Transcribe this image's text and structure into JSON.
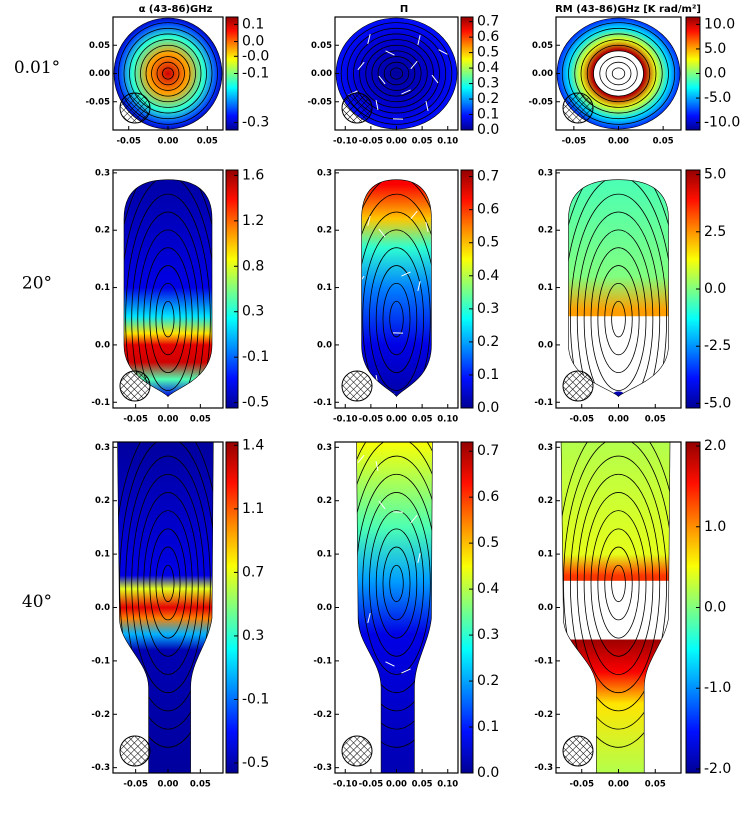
{
  "row_labels": [
    "0.01°",
    "20°",
    "40°"
  ],
  "chart_data": [
    {
      "type": "heatmap",
      "title": "α (43-86)GHz",
      "xlim": [
        -0.07,
        0.07
      ],
      "xticks": [
        -0.05,
        {
          "value": 0,
          "label": "0.00"
        },
        0.05
      ],
      "ylim": [
        -0.1,
        0.1
      ],
      "yticks": [
        0.05,
        {
          "value": 0,
          "label": "0.00"
        },
        -0.05
      ],
      "colorbar": {
        "clim": [
          -0.33,
          0.13
        ],
        "ticks": [
          0.1,
          {
            "value": 0.03,
            "label": "0.0"
          },
          {
            "value": -0.03,
            "label": "-0.0"
          },
          -0.1,
          -0.3
        ]
      }
    },
    {
      "type": "heatmap",
      "title": "Π",
      "xlim": [
        -0.12,
        0.12
      ],
      "xticks": [
        {
          "value": -0.1,
          "label": "-0.10"
        },
        -0.05,
        {
          "value": 0,
          "label": "0.00"
        },
        0.05,
        {
          "value": 0.1,
          "label": "0.10"
        }
      ],
      "ylim": [
        -0.1,
        0.1
      ],
      "yticks": [
        0.05,
        {
          "value": 0,
          "label": "0.00"
        },
        -0.05
      ],
      "colorbar": {
        "clim": [
          0,
          0.73
        ],
        "ticks": [
          0.7,
          0.6,
          0.5,
          0.4,
          0.3,
          0.2,
          0.1,
          {
            "value": 0,
            "label": "0.0"
          }
        ]
      }
    },
    {
      "type": "heatmap",
      "title": "RM (43-86)GHz [K rad/m²]",
      "xlim": [
        -0.07,
        0.07
      ],
      "xticks": [
        -0.05,
        {
          "value": 0,
          "label": "0.00"
        },
        0.05
      ],
      "ylim": [
        -0.1,
        0.1
      ],
      "yticks": [
        0.05,
        {
          "value": 0,
          "label": "0.00"
        },
        -0.05
      ],
      "colorbar": {
        "clim": [
          -11.5,
          11.5
        ],
        "ticks": [
          {
            "value": 10,
            "label": "10.0"
          },
          {
            "value": 5,
            "label": "5.0"
          },
          {
            "value": 0,
            "label": "0.0"
          },
          {
            "value": -5,
            "label": "-5.0"
          },
          {
            "value": -10,
            "label": "-10.0"
          }
        ]
      }
    },
    {
      "type": "heatmap",
      "xlim": [
        -0.085,
        0.085
      ],
      "xticks": [
        -0.05,
        {
          "value": 0,
          "label": "0.00"
        },
        0.05
      ],
      "ylim": [
        -0.11,
        0.305
      ],
      "yticks": [
        0.3,
        0.2,
        0.1,
        {
          "value": 0,
          "label": "0.0"
        },
        -0.1
      ],
      "colorbar": {
        "clim": [
          -0.55,
          1.65
        ],
        "ticks": [
          1.6,
          {
            "value": 1.18,
            "label": "1.2"
          },
          {
            "value": 0.76,
            "label": "0.8"
          },
          {
            "value": 0.34,
            "label": "0.3"
          },
          {
            "value": -0.08,
            "label": "-0.1"
          },
          -0.5
        ]
      }
    },
    {
      "type": "heatmap",
      "xlim": [
        -0.12,
        0.12
      ],
      "xticks": [
        {
          "value": -0.1,
          "label": "-0.10"
        },
        -0.05,
        {
          "value": 0,
          "label": "0.00"
        },
        0.05,
        {
          "value": 0.1,
          "label": "0.10"
        }
      ],
      "ylim": [
        -0.11,
        0.305
      ],
      "yticks": [
        0.3,
        0.2,
        0.1,
        {
          "value": 0,
          "label": "0.0"
        },
        -0.1
      ],
      "colorbar": {
        "clim": [
          0,
          0.72
        ],
        "ticks": [
          0.7,
          0.6,
          0.5,
          0.4,
          0.3,
          0.2,
          0.1,
          {
            "value": 0,
            "label": "0.0"
          }
        ]
      }
    },
    {
      "type": "heatmap",
      "xlim": [
        -0.085,
        0.085
      ],
      "xticks": [
        -0.05,
        {
          "value": 0,
          "label": "0.00"
        },
        0.05
      ],
      "ylim": [
        -0.11,
        0.305
      ],
      "yticks": [
        0.3,
        0.2,
        0.1,
        {
          "value": 0,
          "label": "0.0"
        },
        -0.1
      ],
      "colorbar": {
        "clim": [
          -5.2,
          5.2
        ],
        "ticks": [
          {
            "value": 5,
            "label": "5.0"
          },
          2.5,
          {
            "value": 0,
            "label": "0.0"
          },
          -2.5,
          {
            "value": -5,
            "label": "-5.0"
          }
        ]
      }
    },
    {
      "type": "heatmap",
      "xlim": [
        -0.085,
        0.085
      ],
      "xticks": [
        -0.05,
        {
          "value": 0,
          "label": "0.00"
        },
        0.05
      ],
      "ylim": [
        -0.31,
        0.31
      ],
      "yticks": [
        0.3,
        0.2,
        0.1,
        {
          "value": 0,
          "label": "0.0"
        },
        -0.1,
        -0.2,
        -0.3
      ],
      "colorbar": {
        "clim": [
          -0.52,
          1.46
        ],
        "ticks": [
          {
            "value": 1.44,
            "label": "1.4"
          },
          {
            "value": 1.06,
            "label": "1.1"
          },
          {
            "value": 0.68,
            "label": "0.7"
          },
          0.3,
          {
            "value": -0.08,
            "label": "-0.1"
          },
          {
            "value": -0.46,
            "label": "-0.5"
          }
        ]
      }
    },
    {
      "type": "heatmap",
      "xlim": [
        -0.12,
        0.12
      ],
      "xticks": [
        {
          "value": -0.1,
          "label": "-0.10"
        },
        -0.05,
        {
          "value": 0,
          "label": "0.00"
        },
        0.05,
        {
          "value": 0.1,
          "label": "0.10"
        }
      ],
      "ylim": [
        -0.31,
        0.31
      ],
      "yticks": [
        0.3,
        0.2,
        0.1,
        {
          "value": 0,
          "label": "0.0"
        },
        -0.1,
        -0.2,
        -0.3
      ],
      "colorbar": {
        "clim": [
          0,
          0.72
        ],
        "ticks": [
          0.7,
          0.6,
          0.5,
          0.4,
          0.3,
          0.2,
          0.1,
          {
            "value": 0,
            "label": "0.0"
          }
        ]
      }
    },
    {
      "type": "heatmap",
      "xlim": [
        -0.085,
        0.085
      ],
      "xticks": [
        -0.05,
        {
          "value": 0,
          "label": "0.00"
        },
        0.05
      ],
      "ylim": [
        -0.31,
        0.31
      ],
      "yticks": [
        0.3,
        0.2,
        0.1,
        {
          "value": 0,
          "label": "0.0"
        },
        -0.1,
        -0.2,
        -0.3
      ],
      "colorbar": {
        "clim": [
          -2.05,
          2.05
        ],
        "ticks": [
          {
            "value": 2,
            "label": "2.0"
          },
          {
            "value": 1,
            "label": "1.0"
          },
          {
            "value": 0,
            "label": "0.0"
          },
          {
            "value": -1,
            "label": "-1.0"
          },
          {
            "value": -2,
            "label": "-2.0"
          }
        ]
      }
    }
  ]
}
